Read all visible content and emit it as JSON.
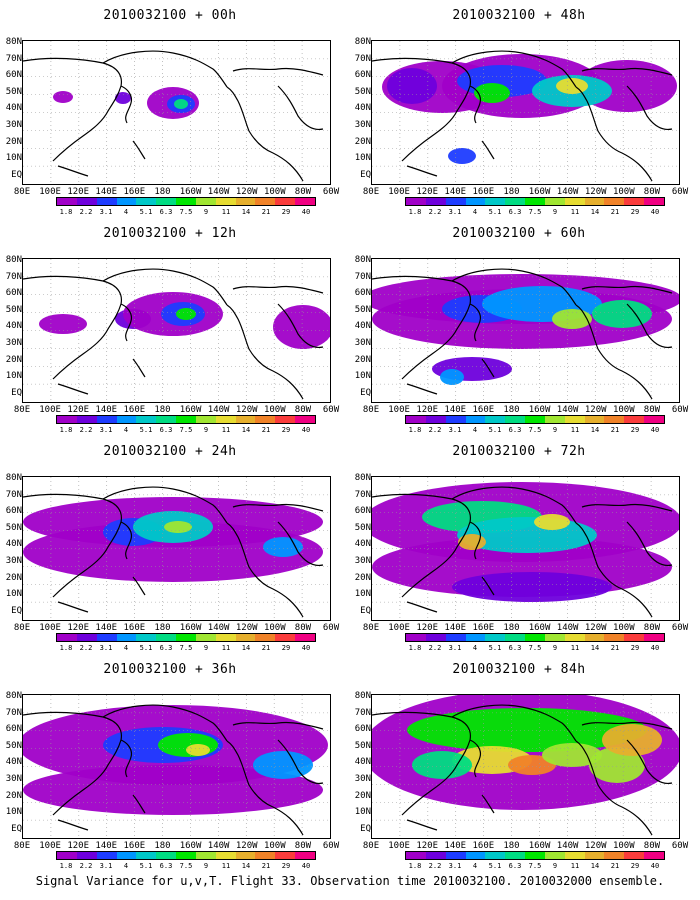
{
  "panels": [
    {
      "title": "2010032100 + 00h"
    },
    {
      "title": "2010032100 + 48h"
    },
    {
      "title": "2010032100 + 12h"
    },
    {
      "title": "2010032100 + 60h"
    },
    {
      "title": "2010032100 + 24h"
    },
    {
      "title": "2010032100 + 72h"
    },
    {
      "title": "2010032100 + 36h"
    },
    {
      "title": "2010032100 + 84h"
    }
  ],
  "lat_labels": [
    "80N",
    "70N",
    "60N",
    "50N",
    "40N",
    "30N",
    "20N",
    "10N",
    "EQ"
  ],
  "lon_labels": [
    "80E",
    "100E",
    "120E",
    "140E",
    "160E",
    "180",
    "160W",
    "140W",
    "120W",
    "100W",
    "80W",
    "60W"
  ],
  "colorbar": {
    "labels": [
      "1.8",
      "2.2",
      "3.1",
      "4",
      "5.1",
      "6.3",
      "7.5",
      "9",
      "11",
      "14",
      "21",
      "29",
      "40"
    ],
    "colors": [
      "#a000c8",
      "#6e00dc",
      "#1e3cff",
      "#0096ff",
      "#00c8c8",
      "#00dc82",
      "#00e600",
      "#a0e632",
      "#e6dc32",
      "#e6af2d",
      "#f08228",
      "#fa3c3c",
      "#f00082"
    ]
  },
  "footer": "Signal Variance for u,v,T. Flight 33. Observation time 2010032100. 2010032000 ensemble."
}
